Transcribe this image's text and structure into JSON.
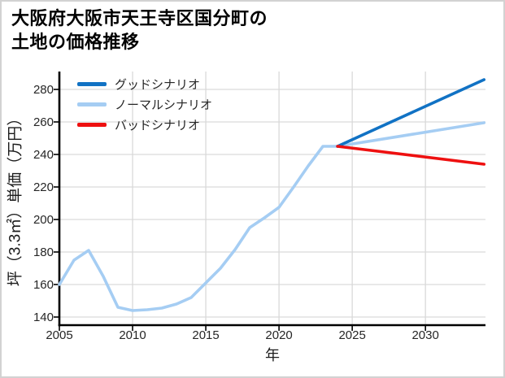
{
  "window": {
    "background": "#ffffff",
    "border_color": "#d2d2d2"
  },
  "chart_data": {
    "type": "line",
    "title": "大阪府大阪市天王寺区国分町の土地の価格推移",
    "title_lines": [
      "大阪府大阪市天王寺区国分町の",
      "土地の価格推移"
    ],
    "xlabel": "年",
    "ylabel": "坪（3.3㎡）単価（万円）",
    "xlim": [
      2005,
      2034.1
    ],
    "ylim": [
      135,
      291
    ],
    "xticks": [
      2005,
      2010,
      2015,
      2020,
      2025,
      2030
    ],
    "yticks": [
      140,
      160,
      180,
      200,
      220,
      240,
      260,
      280
    ],
    "grid": true,
    "legend_position": "upper-left",
    "colors": {
      "grid": "#d9d9d9",
      "spine": "#000000",
      "tick_label": "#262626",
      "title": "#000000"
    },
    "series": [
      {
        "name": "グッドシナリオ",
        "color": "#1172c4",
        "points": [
          [
            2024,
            245
          ],
          [
            2034,
            286
          ]
        ]
      },
      {
        "name": "ノーマルシナリオ",
        "color": "#a5cdf3",
        "points": [
          [
            2005,
            160
          ],
          [
            2006,
            175
          ],
          [
            2007,
            181
          ],
          [
            2008,
            165
          ],
          [
            2009,
            146
          ],
          [
            2010,
            144
          ],
          [
            2011,
            144.5
          ],
          [
            2012,
            145.5
          ],
          [
            2013,
            148
          ],
          [
            2014,
            152
          ],
          [
            2015,
            161
          ],
          [
            2016,
            170
          ],
          [
            2017,
            181.5
          ],
          [
            2018,
            195
          ],
          [
            2019,
            201
          ],
          [
            2020,
            207.5
          ],
          [
            2021,
            220
          ],
          [
            2022,
            233
          ],
          [
            2023,
            245
          ],
          [
            2024,
            245
          ],
          [
            2034,
            259.5
          ]
        ]
      },
      {
        "name": "バッドシナリオ",
        "color": "#ee1010",
        "points": [
          [
            2024,
            245
          ],
          [
            2034,
            234
          ]
        ]
      }
    ]
  }
}
